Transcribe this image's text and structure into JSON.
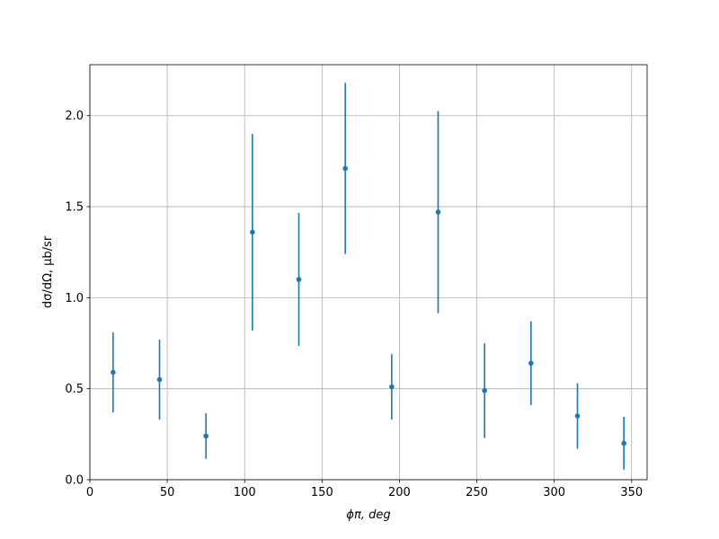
{
  "chart_data": {
    "type": "errorbar",
    "xlabel": "ϕπ, deg",
    "ylabel": "dσ/dΩ, μb/sr",
    "x": [
      15,
      45,
      75,
      105,
      135,
      165,
      195,
      225,
      255,
      285,
      315,
      345
    ],
    "values": [
      0.59,
      0.55,
      0.24,
      1.36,
      1.1,
      1.71,
      0.51,
      1.47,
      0.49,
      0.64,
      0.35,
      0.2
    ],
    "errors": [
      0.22,
      0.22,
      0.125,
      0.54,
      0.365,
      0.47,
      0.18,
      0.555,
      0.26,
      0.23,
      0.18,
      0.145
    ],
    "color": "#1f77b4",
    "xlim": [
      0,
      360
    ],
    "ylim": [
      0,
      2.28
    ],
    "xticks": [
      0,
      50,
      100,
      150,
      200,
      250,
      300,
      350
    ],
    "yticks": [
      {
        "value": 0,
        "label": "0.0"
      },
      {
        "value": 0.5,
        "label": "0.5"
      },
      {
        "value": 1,
        "label": "1.0"
      },
      {
        "value": 1.5,
        "label": "1.5"
      },
      {
        "value": 2,
        "label": "2.0"
      }
    ],
    "grid": true
  }
}
